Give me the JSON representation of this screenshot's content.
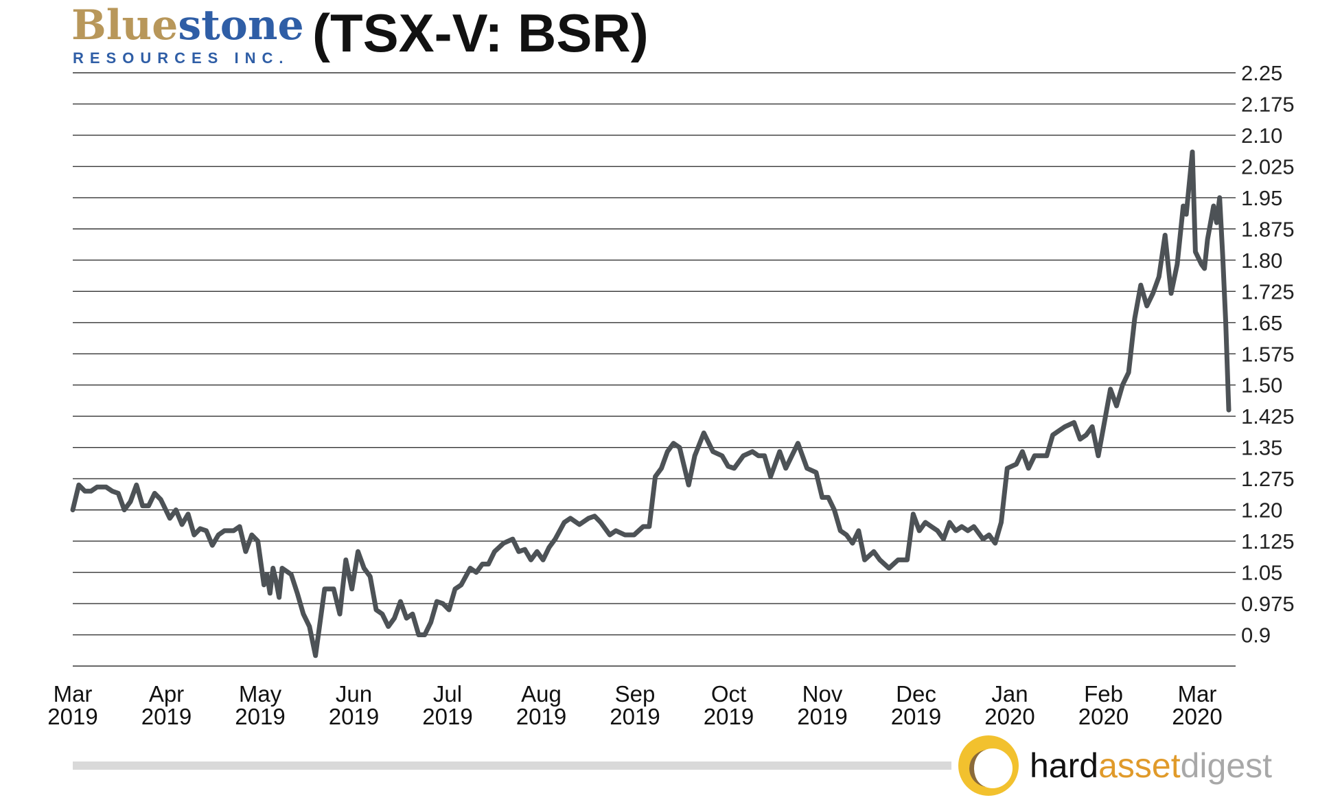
{
  "header": {
    "logo_name_part1": "Blue",
    "logo_name_part2": "stone",
    "logo_subtitle": "RESOURCES INC.",
    "title": "(TSX-V: BSR)"
  },
  "footer": {
    "brand_part1": "hard",
    "brand_part2": "asset",
    "brand_part3": "digest"
  },
  "colors": {
    "logo_gold": "#b8975a",
    "logo_blue": "#2f5ea6",
    "line": "#4d5256",
    "grid": "#333333",
    "brand_gold": "#f2c12e",
    "brand_orange": "#e09a2a",
    "brand_gray": "#a8a8a8",
    "footer_bar": "#d9d9d9"
  },
  "chart_data": {
    "type": "line",
    "y_ticks": [
      "2.25",
      "2.175",
      "2.10",
      "2.025",
      "1.95",
      "1.875",
      "1.80",
      "1.725",
      "1.65",
      "1.575",
      "1.50",
      "1.425",
      "1.35",
      "1.275",
      "1.20",
      "1.125",
      "1.05",
      "0.975",
      "0.9"
    ],
    "y_tick_values": [
      2.25,
      2.175,
      2.1,
      2.025,
      1.95,
      1.875,
      1.8,
      1.725,
      1.65,
      1.575,
      1.5,
      1.425,
      1.35,
      1.275,
      1.2,
      1.125,
      1.05,
      0.975,
      0.9
    ],
    "ylim": [
      0.825,
      2.25
    ],
    "grid": true,
    "x_ticks": [
      {
        "month": "Mar",
        "year": "2019"
      },
      {
        "month": "Apr",
        "year": "2019"
      },
      {
        "month": "May",
        "year": "2019"
      },
      {
        "month": "Jun",
        "year": "2019"
      },
      {
        "month": "Jul",
        "year": "2019"
      },
      {
        "month": "Aug",
        "year": "2019"
      },
      {
        "month": "Sep",
        "year": "2019"
      },
      {
        "month": "Oct",
        "year": "2019"
      },
      {
        "month": "Nov",
        "year": "2019"
      },
      {
        "month": "Dec",
        "year": "2019"
      },
      {
        "month": "Jan",
        "year": "2020"
      },
      {
        "month": "Feb",
        "year": "2020"
      },
      {
        "month": "Mar",
        "year": "2020"
      }
    ],
    "xlim": [
      "2019-03-01",
      "2020-03-16"
    ],
    "series": [
      {
        "points": [
          [
            "2019-03-01",
            1.2
          ],
          [
            "2019-03-03",
            1.26
          ],
          [
            "2019-03-05",
            1.245
          ],
          [
            "2019-03-07",
            1.245
          ],
          [
            "2019-03-09",
            1.255
          ],
          [
            "2019-03-12",
            1.255
          ],
          [
            "2019-03-14",
            1.245
          ],
          [
            "2019-03-16",
            1.24
          ],
          [
            "2019-03-18",
            1.2
          ],
          [
            "2019-03-20",
            1.22
          ],
          [
            "2019-03-22",
            1.26
          ],
          [
            "2019-03-24",
            1.21
          ],
          [
            "2019-03-26",
            1.21
          ],
          [
            "2019-03-28",
            1.24
          ],
          [
            "2019-03-30",
            1.225
          ],
          [
            "2019-04-02",
            1.18
          ],
          [
            "2019-04-04",
            1.2
          ],
          [
            "2019-04-06",
            1.165
          ],
          [
            "2019-04-08",
            1.19
          ],
          [
            "2019-04-10",
            1.14
          ],
          [
            "2019-04-12",
            1.155
          ],
          [
            "2019-04-14",
            1.15
          ],
          [
            "2019-04-16",
            1.115
          ],
          [
            "2019-04-18",
            1.14
          ],
          [
            "2019-04-20",
            1.15
          ],
          [
            "2019-04-23",
            1.15
          ],
          [
            "2019-04-25",
            1.16
          ],
          [
            "2019-04-27",
            1.1
          ],
          [
            "2019-04-29",
            1.14
          ],
          [
            "2019-05-01",
            1.125
          ],
          [
            "2019-05-03",
            1.02
          ],
          [
            "2019-05-04",
            1.045
          ],
          [
            "2019-05-05",
            1.0
          ],
          [
            "2019-05-06",
            1.06
          ],
          [
            "2019-05-07",
            1.03
          ],
          [
            "2019-05-08",
            0.99
          ],
          [
            "2019-05-09",
            1.06
          ],
          [
            "2019-05-12",
            1.045
          ],
          [
            "2019-05-14",
            1.0
          ],
          [
            "2019-05-16",
            0.95
          ],
          [
            "2019-05-18",
            0.92
          ],
          [
            "2019-05-20",
            0.85
          ],
          [
            "2019-05-23",
            1.01
          ],
          [
            "2019-05-26",
            1.01
          ],
          [
            "2019-05-28",
            0.95
          ],
          [
            "2019-05-30",
            1.08
          ],
          [
            "2019-06-01",
            1.01
          ],
          [
            "2019-06-03",
            1.1
          ],
          [
            "2019-06-05",
            1.06
          ],
          [
            "2019-06-07",
            1.04
          ],
          [
            "2019-06-09",
            0.96
          ],
          [
            "2019-06-11",
            0.95
          ],
          [
            "2019-06-13",
            0.92
          ],
          [
            "2019-06-15",
            0.94
          ],
          [
            "2019-06-17",
            0.98
          ],
          [
            "2019-06-19",
            0.94
          ],
          [
            "2019-06-21",
            0.95
          ],
          [
            "2019-06-23",
            0.9
          ],
          [
            "2019-06-25",
            0.9
          ],
          [
            "2019-06-27",
            0.93
          ],
          [
            "2019-06-29",
            0.98
          ],
          [
            "2019-07-01",
            0.975
          ],
          [
            "2019-07-03",
            0.96
          ],
          [
            "2019-07-05",
            1.01
          ],
          [
            "2019-07-07",
            1.02
          ],
          [
            "2019-07-10",
            1.06
          ],
          [
            "2019-07-12",
            1.05
          ],
          [
            "2019-07-14",
            1.07
          ],
          [
            "2019-07-16",
            1.07
          ],
          [
            "2019-07-18",
            1.1
          ],
          [
            "2019-07-21",
            1.12
          ],
          [
            "2019-07-24",
            1.13
          ],
          [
            "2019-07-26",
            1.1
          ],
          [
            "2019-07-28",
            1.105
          ],
          [
            "2019-07-30",
            1.08
          ],
          [
            "2019-08-01",
            1.1
          ],
          [
            "2019-08-03",
            1.08
          ],
          [
            "2019-08-05",
            1.11
          ],
          [
            "2019-08-07",
            1.13
          ],
          [
            "2019-08-10",
            1.17
          ],
          [
            "2019-08-12",
            1.18
          ],
          [
            "2019-08-15",
            1.165
          ],
          [
            "2019-08-18",
            1.18
          ],
          [
            "2019-08-20",
            1.185
          ],
          [
            "2019-08-22",
            1.17
          ],
          [
            "2019-08-25",
            1.14
          ],
          [
            "2019-08-27",
            1.15
          ],
          [
            "2019-08-30",
            1.14
          ],
          [
            "2019-09-02",
            1.14
          ],
          [
            "2019-09-05",
            1.16
          ],
          [
            "2019-09-07",
            1.16
          ],
          [
            "2019-09-09",
            1.28
          ],
          [
            "2019-09-11",
            1.3
          ],
          [
            "2019-09-13",
            1.34
          ],
          [
            "2019-09-15",
            1.36
          ],
          [
            "2019-09-17",
            1.35
          ],
          [
            "2019-09-20",
            1.26
          ],
          [
            "2019-09-22",
            1.33
          ],
          [
            "2019-09-25",
            1.385
          ],
          [
            "2019-09-28",
            1.34
          ],
          [
            "2019-10-01",
            1.33
          ],
          [
            "2019-10-03",
            1.305
          ],
          [
            "2019-10-05",
            1.3
          ],
          [
            "2019-10-08",
            1.33
          ],
          [
            "2019-10-11",
            1.34
          ],
          [
            "2019-10-13",
            1.33
          ],
          [
            "2019-10-15",
            1.33
          ],
          [
            "2019-10-17",
            1.28
          ],
          [
            "2019-10-20",
            1.34
          ],
          [
            "2019-10-22",
            1.3
          ],
          [
            "2019-10-24",
            1.33
          ],
          [
            "2019-10-26",
            1.36
          ],
          [
            "2019-10-29",
            1.3
          ],
          [
            "2019-11-01",
            1.29
          ],
          [
            "2019-11-03",
            1.23
          ],
          [
            "2019-11-05",
            1.23
          ],
          [
            "2019-11-07",
            1.2
          ],
          [
            "2019-11-09",
            1.15
          ],
          [
            "2019-11-11",
            1.14
          ],
          [
            "2019-11-13",
            1.12
          ],
          [
            "2019-11-15",
            1.15
          ],
          [
            "2019-11-17",
            1.08
          ],
          [
            "2019-11-20",
            1.1
          ],
          [
            "2019-11-22",
            1.08
          ],
          [
            "2019-11-25",
            1.06
          ],
          [
            "2019-11-28",
            1.08
          ],
          [
            "2019-12-01",
            1.08
          ],
          [
            "2019-12-03",
            1.19
          ],
          [
            "2019-12-05",
            1.15
          ],
          [
            "2019-12-07",
            1.17
          ],
          [
            "2019-12-09",
            1.16
          ],
          [
            "2019-12-11",
            1.15
          ],
          [
            "2019-12-13",
            1.13
          ],
          [
            "2019-12-15",
            1.17
          ],
          [
            "2019-12-17",
            1.15
          ],
          [
            "2019-12-19",
            1.16
          ],
          [
            "2019-12-21",
            1.15
          ],
          [
            "2019-12-23",
            1.16
          ],
          [
            "2019-12-26",
            1.13
          ],
          [
            "2019-12-28",
            1.14
          ],
          [
            "2019-12-30",
            1.12
          ],
          [
            "2020-01-01",
            1.17
          ],
          [
            "2020-01-03",
            1.3
          ],
          [
            "2020-01-06",
            1.31
          ],
          [
            "2020-01-08",
            1.34
          ],
          [
            "2020-01-10",
            1.3
          ],
          [
            "2020-01-12",
            1.33
          ],
          [
            "2020-01-14",
            1.33
          ],
          [
            "2020-01-16",
            1.33
          ],
          [
            "2020-01-18",
            1.38
          ],
          [
            "2020-01-20",
            1.39
          ],
          [
            "2020-01-22",
            1.4
          ],
          [
            "2020-01-25",
            1.41
          ],
          [
            "2020-01-27",
            1.37
          ],
          [
            "2020-01-29",
            1.38
          ],
          [
            "2020-01-31",
            1.4
          ],
          [
            "2020-02-02",
            1.33
          ],
          [
            "2020-02-04",
            1.41
          ],
          [
            "2020-02-06",
            1.49
          ],
          [
            "2020-02-08",
            1.45
          ],
          [
            "2020-02-10",
            1.5
          ],
          [
            "2020-02-12",
            1.53
          ],
          [
            "2020-02-14",
            1.66
          ],
          [
            "2020-02-16",
            1.74
          ],
          [
            "2020-02-18",
            1.69
          ],
          [
            "2020-02-20",
            1.72
          ],
          [
            "2020-02-22",
            1.76
          ],
          [
            "2020-02-24",
            1.86
          ],
          [
            "2020-02-26",
            1.72
          ],
          [
            "2020-02-28",
            1.79
          ],
          [
            "2020-03-01",
            1.93
          ],
          [
            "2020-03-02",
            1.91
          ],
          [
            "2020-03-04",
            2.06
          ],
          [
            "2020-03-05",
            1.82
          ],
          [
            "2020-03-07",
            1.79
          ],
          [
            "2020-03-08",
            1.78
          ],
          [
            "2020-03-09",
            1.85
          ],
          [
            "2020-03-11",
            1.93
          ],
          [
            "2020-03-12",
            1.89
          ],
          [
            "2020-03-13",
            1.95
          ],
          [
            "2020-03-14",
            1.81
          ],
          [
            "2020-03-15",
            1.65
          ],
          [
            "2020-03-16",
            1.44
          ]
        ]
      }
    ]
  }
}
